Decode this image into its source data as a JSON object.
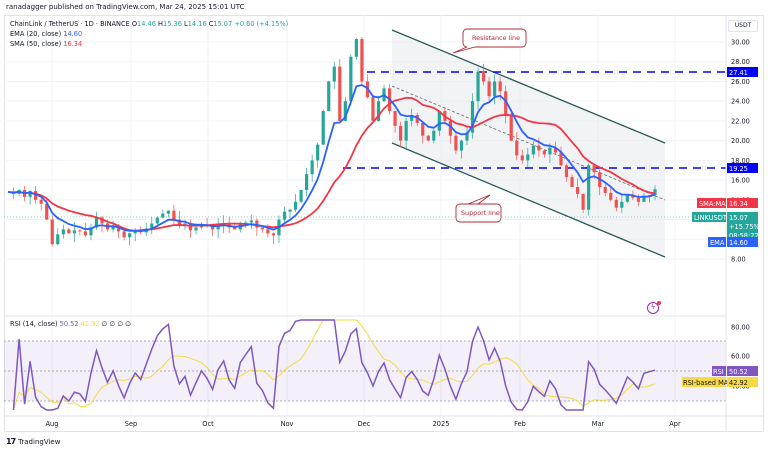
{
  "publisher": "ranadagger published on TradingView.com, Mar 24, 2025 15:01 UTC",
  "header": {
    "symbol": "ChainLink / TetherUS · 1D · BINANCE",
    "o_label": "O",
    "o": "14.46",
    "h_label": "H",
    "h": "15.36",
    "l_label": "L",
    "l": "14.16",
    "c_label": "C",
    "c": "15.07",
    "change": "+0.60 (+4.15%)"
  },
  "indicators": {
    "ema_label": "EMA (20, close)",
    "ema_value": "14.60",
    "sma_label": "SMA (50, close)",
    "sma_value": "16.34",
    "rsi_label": "RSI (14, close)",
    "rsi_value": "50.52",
    "rsi_ma_value": "42.92",
    "rsi_extra": "∅ ∅ ∅ ∅"
  },
  "price_axis": {
    "currency": "USDT",
    "ticks": [
      "30.00",
      "28.00",
      "26.00",
      "24.00",
      "22.00",
      "20.00",
      "18.00",
      "16.00",
      "14.00",
      "12.00",
      "10.00",
      "8.00"
    ]
  },
  "rsi_axis": {
    "ticks": [
      "80.00",
      "60.00",
      "40.00"
    ]
  },
  "tags": {
    "resistance_level": "27.41",
    "support_level": "19.25",
    "sma_tag_label": "SMA:MA",
    "sma_tag_value": "16.34",
    "symbol_tag_label": "LINKUSDT",
    "price": "15.07",
    "pct": "+15.75%",
    "countdown": "08:58:22",
    "ema_tag_label": "EMA",
    "ema_tag_value": "14.60",
    "rsi_tag_label": "RSI",
    "rsi_tag_value": "50.52",
    "rsi_ma_tag_label": "RSI-based MA",
    "rsi_ma_tag_value": "42.92"
  },
  "annotations": {
    "resistance": "Resistance line",
    "support": "Support line"
  },
  "time_axis": {
    "labels": [
      "Aug",
      "Sep",
      "Oct",
      "Nov",
      "Dec",
      "2025",
      "Feb",
      "Mar",
      "Apr"
    ]
  },
  "footer": {
    "logo": "17",
    "brand": "TradingView"
  },
  "colors": {
    "up": "#26a69a",
    "down": "#ef5350",
    "ema": "#2962ff",
    "sma": "#f23645",
    "rsi": "#7e57c2",
    "rsi_ma": "#f7d945",
    "level": "#0000ff",
    "channel": "#2a5a5a"
  },
  "chart_data": {
    "type": "candlestick",
    "title": "ChainLink / TetherUS · 1D · BINANCE",
    "xlabel": "",
    "ylabel": "USDT",
    "ylim": [
      7,
      31
    ],
    "x_ticks": [
      "Aug",
      "Sep",
      "Oct",
      "Nov",
      "Dec",
      "2025",
      "Feb",
      "Mar",
      "Apr"
    ],
    "close_path": [
      14.8,
      14.6,
      15.0,
      14.3,
      14.9,
      14.0,
      13.6,
      12.0,
      9.5,
      10.5,
      11.0,
      10.6,
      10.9,
      10.8,
      10.4,
      11.2,
      12.2,
      11.6,
      11.0,
      11.4,
      10.8,
      10.2,
      10.6,
      10.9,
      10.7,
      11.1,
      11.6,
      12.2,
      12.6,
      12.9,
      12.0,
      11.4,
      11.6,
      10.9,
      11.2,
      11.5,
      11.3,
      11.0,
      11.4,
      11.6,
      11.2,
      11.0,
      11.5,
      11.7,
      11.9,
      11.2,
      11.0,
      10.6,
      10.4,
      12.0,
      12.8,
      13.0,
      13.8,
      15.0,
      16.6,
      18.0,
      19.6,
      23.0,
      26.0,
      27.5,
      22.0,
      24.0,
      28.5,
      30.3,
      26.0,
      24.4,
      22.0,
      24.0,
      25.3,
      23.0,
      21.5,
      20.0,
      22.0,
      22.6,
      21.8,
      20.5,
      20.0,
      21.0,
      23.0,
      22.0,
      20.5,
      19.0,
      20.0,
      20.8,
      24.0,
      27.0,
      26.0,
      24.5,
      26.0,
      25.0,
      22.5,
      20.0,
      18.5,
      18.0,
      18.6,
      19.5,
      19.0,
      18.6,
      19.3,
      18.8,
      17.5,
      16.3,
      15.3,
      14.6,
      13.0,
      17.5,
      16.8,
      15.3,
      14.7,
      14.0,
      13.2,
      13.8,
      14.5,
      14.2,
      13.8,
      14.4,
      14.46,
      15.07
    ],
    "series": [
      {
        "name": "EMA (20, close)",
        "last": 14.6
      },
      {
        "name": "SMA (50, close)",
        "last": 16.34
      },
      {
        "name": "RSI (14, close)",
        "last": 50.52,
        "ylim": [
          20,
          85
        ],
        "bands": [
          30,
          50,
          70
        ]
      },
      {
        "name": "RSI-based MA",
        "last": 42.92
      }
    ],
    "horizontal_levels": [
      27.41,
      19.25
    ],
    "channel": {
      "upper": [
        [
          392,
          30.6
        ],
        [
          665,
          21.2
        ]
      ],
      "lower": [
        [
          392,
          19.8
        ],
        [
          665,
          11.5
        ]
      ]
    },
    "annotations": [
      "Resistance line",
      "Support line"
    ],
    "last_close": 15.07
  }
}
